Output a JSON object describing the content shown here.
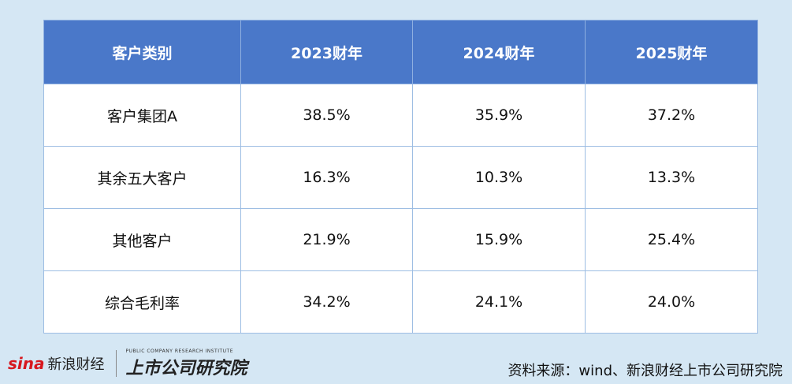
{
  "table": {
    "header": [
      "客户类别",
      "2023财年",
      "2024财年",
      "2025财年"
    ],
    "rows": [
      [
        "客户集团A",
        "38.5%",
        "35.9%",
        "37.2%"
      ],
      [
        "其余五大客户",
        "16.3%",
        "10.3%",
        "13.3%"
      ],
      [
        "其他客户",
        "21.9%",
        "15.9%",
        "25.4%"
      ],
      [
        "综合毛利率",
        "34.2%",
        "24.1%",
        "24.0%"
      ]
    ]
  },
  "footer": {
    "logo": {
      "sina": "sina",
      "brand": "新浪财经",
      "institute": "上市公司研究院",
      "institute_en": "PUBLIC COMPANY RESEARCH INSTITUTE"
    },
    "source": "资料来源：wind、新浪财经上市公司研究院"
  }
}
